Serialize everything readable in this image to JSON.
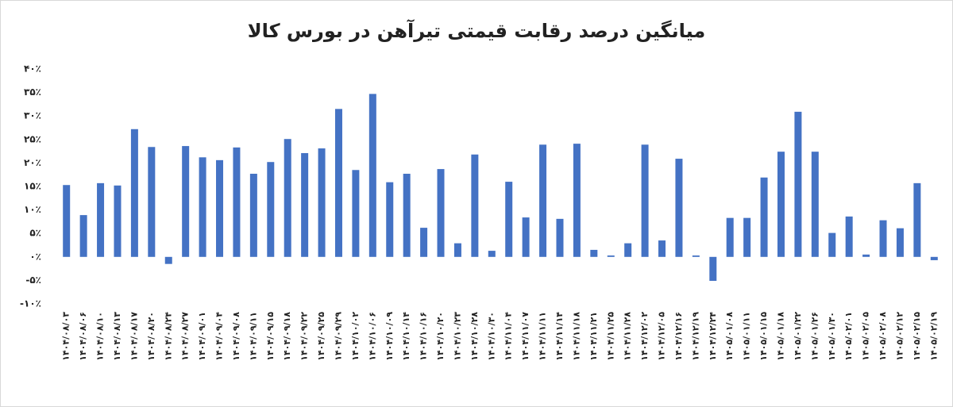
{
  "chart_data": {
    "type": "bar",
    "title": "میانگین درصد رقابت قیمتی تیرآهن در بورس کالا",
    "categories": [
      "۱۴۰۴/۰۸/۰۳",
      "۱۴۰۴/۰۸/۰۶",
      "۱۴۰۴/۰۸/۱۰",
      "۱۴۰۴/۰۸/۱۳",
      "۱۴۰۴/۰۸/۱۷",
      "۱۴۰۴/۰۸/۲۰",
      "۱۴۰۴/۰۸/۲۴",
      "۱۴۰۴/۰۸/۲۷",
      "۱۴۰۴/۰۹/۰۱",
      "۱۴۰۴/۰۹/۰۴",
      "۱۴۰۴/۰۹/۰۸",
      "۱۴۰۴/۰۹/۱۱",
      "۱۴۰۴/۰۹/۱۵",
      "۱۴۰۴/۰۹/۱۸",
      "۱۴۰۴/۰۹/۲۲",
      "۱۴۰۴/۰۹/۲۵",
      "۱۴۰۴/۰۹/۲۹",
      "۱۴۰۴/۱۰/۰۲",
      "۱۴۰۴/۱۰/۰۶",
      "۱۴۰۴/۱۰/۰۹",
      "۱۴۰۴/۱۰/۱۴",
      "۱۴۰۴/۱۰/۱۶",
      "۱۴۰۴/۱۰/۲۰",
      "۱۴۰۴/۱۰/۲۳",
      "۱۴۰۴/۱۰/۲۸",
      "۱۴۰۴/۱۰/۳۰",
      "۱۴۰۴/۱۱/۰۴",
      "۱۴۰۴/۱۱/۰۷",
      "۱۴۰۴/۱۱/۱۱",
      "۱۴۰۴/۱۱/۱۴",
      "۱۴۰۴/۱۱/۱۸",
      "۱۴۰۴/۱۱/۲۱",
      "۱۴۰۴/۱۱/۲۵",
      "۱۴۰۴/۱۱/۲۸",
      "۱۴۰۴/۱۲/۰۲",
      "۱۴۰۴/۱۲/۰۵",
      "۱۴۰۴/۱۲/۱۶",
      "۱۴۰۴/۱۲/۱۹",
      "۱۴۰۴/۱۲/۲۴",
      "۱۴۰۵/۰۱/۰۸",
      "۱۴۰۵/۰۱/۱۱",
      "۱۴۰۵/۰۱/۱۵",
      "۱۴۰۵/۰۱/۱۸",
      "۱۴۰۵/۰۱/۲۲",
      "۱۴۰۵/۰۱/۲۶",
      "۱۴۰۵/۰۱/۳۰",
      "۱۴۰۵/۰۲/۰۱",
      "۱۴۰۵/۰۲/۰۵",
      "۱۴۰۵/۰۲/۰۸",
      "۱۴۰۵/۰۲/۱۲",
      "۱۴۰۵/۰۲/۱۵",
      "۱۴۰۵/۰۲/۱۹"
    ],
    "values": [
      15.3,
      8.9,
      15.7,
      15.2,
      27.2,
      23.4,
      -1.5,
      23.6,
      21.2,
      20.6,
      23.3,
      17.7,
      20.2,
      25.1,
      22.1,
      23.1,
      31.5,
      18.5,
      34.7,
      15.9,
      17.7,
      6.2,
      18.7,
      2.9,
      21.8,
      1.3,
      16.0,
      8.4,
      23.9,
      8.1,
      24.1,
      1.5,
      0.3,
      2.9,
      23.9,
      3.5,
      20.9,
      0.3,
      -5.1,
      8.3,
      8.3,
      16.9,
      22.4,
      30.9,
      22.4,
      5.1,
      8.6,
      0.5,
      7.8,
      6.1,
      15.7,
      -0.7
    ],
    "color": "#4472c4",
    "ylim": [
      -10,
      40
    ],
    "yticks": [
      {
        "value": -10,
        "label": "-۱۰٪"
      },
      {
        "value": -5,
        "label": "-۵٪"
      },
      {
        "value": 0,
        "label": "۰٪"
      },
      {
        "value": 5,
        "label": "۵٪"
      },
      {
        "value": 10,
        "label": "۱۰٪"
      },
      {
        "value": 15,
        "label": "۱۵٪"
      },
      {
        "value": 20,
        "label": "۲۰٪"
      },
      {
        "value": 25,
        "label": "۲۵٪"
      },
      {
        "value": 30,
        "label": "۳۰٪"
      },
      {
        "value": 35,
        "label": "۳۵٪"
      },
      {
        "value": 40,
        "label": "۴۰٪"
      }
    ],
    "grid": false
  }
}
